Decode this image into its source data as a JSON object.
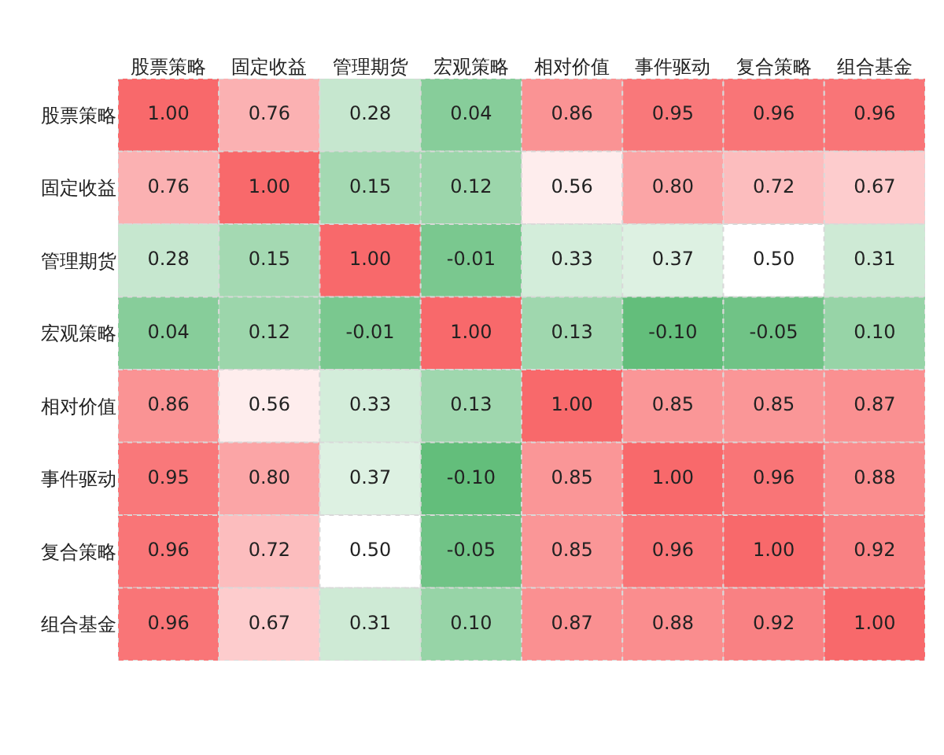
{
  "chart_data": {
    "type": "heatmap",
    "categories": [
      "股票策略",
      "固定收益",
      "管理期货",
      "宏观策略",
      "相对价值",
      "事件驱动",
      "复合策略",
      "组合基金"
    ],
    "y_categories": [
      "股票策略",
      "固定收益",
      "管理期货",
      "宏观策略",
      "相对价值",
      "事件驱动",
      "复合策略",
      "组合基金"
    ],
    "cells": [
      [
        1.0,
        0.76,
        0.28,
        0.04,
        0.86,
        0.95,
        0.96,
        0.96
      ],
      [
        0.76,
        1.0,
        0.15,
        0.12,
        0.56,
        0.8,
        0.72,
        0.67
      ],
      [
        0.28,
        0.15,
        1.0,
        -0.01,
        0.33,
        0.37,
        0.5,
        0.31
      ],
      [
        0.04,
        0.12,
        -0.01,
        1.0,
        0.13,
        -0.1,
        -0.05,
        0.1
      ],
      [
        0.86,
        0.56,
        0.33,
        0.13,
        1.0,
        0.85,
        0.85,
        0.87
      ],
      [
        0.95,
        0.8,
        0.37,
        -0.1,
        0.85,
        1.0,
        0.96,
        0.88
      ],
      [
        0.96,
        0.72,
        0.5,
        -0.05,
        0.85,
        0.96,
        1.0,
        0.92
      ],
      [
        0.96,
        0.67,
        0.31,
        0.1,
        0.87,
        0.88,
        0.92,
        1.0
      ]
    ],
    "cell_labels": [
      [
        "1.00",
        "0.76",
        "0.28",
        "0.04",
        "0.86",
        "0.95",
        "0.96",
        "0.96"
      ],
      [
        "0.76",
        "1.00",
        "0.15",
        "0.12",
        "0.56",
        "0.80",
        "0.72",
        "0.67"
      ],
      [
        "0.28",
        "0.15",
        "1.00",
        "-0.01",
        "0.33",
        "0.37",
        "0.50",
        "0.31"
      ],
      [
        "0.04",
        "0.12",
        "-0.01",
        "1.00",
        "0.13",
        "-0.10",
        "-0.05",
        "0.10"
      ],
      [
        "0.86",
        "0.56",
        "0.33",
        "0.13",
        "1.00",
        "0.85",
        "0.85",
        "0.87"
      ],
      [
        "0.95",
        "0.80",
        "0.37",
        "-0.10",
        "0.85",
        "1.00",
        "0.96",
        "0.88"
      ],
      [
        "0.96",
        "0.72",
        "0.50",
        "-0.05",
        "0.85",
        "0.96",
        "1.00",
        "0.92"
      ],
      [
        "0.96",
        "0.67",
        "0.31",
        "0.10",
        "0.87",
        "0.88",
        "0.92",
        "1.00"
      ]
    ]
  }
}
